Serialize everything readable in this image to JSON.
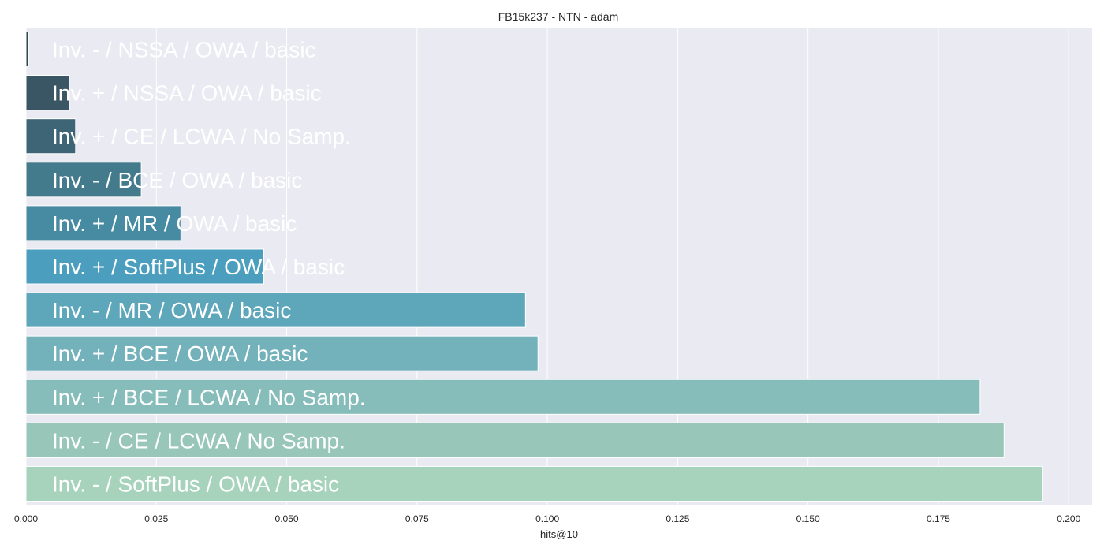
{
  "chart_data": {
    "type": "bar",
    "orientation": "horizontal",
    "title": "FB15k237 - NTN - adam",
    "xlabel": "hits@10",
    "ylabel": "",
    "xlim": [
      0,
      0.2045
    ],
    "grid": true,
    "x_ticks": [
      0.0,
      0.025,
      0.05,
      0.075,
      0.1,
      0.125,
      0.15,
      0.175,
      0.2
    ],
    "x_tick_labels": [
      "0.000",
      "0.025",
      "0.050",
      "0.075",
      "0.100",
      "0.125",
      "0.150",
      "0.175",
      "0.200"
    ],
    "categories": [
      "Inv. - / NSSA / OWA / basic",
      "Inv. + / NSSA / OWA / basic",
      "Inv. + / CE / LCWA / No Samp.",
      "Inv. - / BCE / OWA / basic",
      "Inv. + / MR / OWA / basic",
      "Inv. + / SoftPlus / OWA / basic",
      "Inv. - / MR / OWA / basic",
      "Inv. + / BCE / OWA / basic",
      "Inv. + / BCE / LCWA / No Samp.",
      "Inv. - / CE / LCWA / No Samp.",
      "Inv. - / SoftPlus / OWA / basic"
    ],
    "values": [
      0.0005,
      0.0083,
      0.0095,
      0.0221,
      0.0297,
      0.0456,
      0.0958,
      0.0982,
      0.183,
      0.1876,
      0.195
    ],
    "colors": [
      "#2f4550",
      "#3a5563",
      "#3e6575",
      "#437a8c",
      "#468ba2",
      "#4c9ebe",
      "#5ea7bb",
      "#74b2bb",
      "#86bdba",
      "#98c7ba",
      "#a7d2bc"
    ],
    "plot_background": "#eaeaf2"
  }
}
